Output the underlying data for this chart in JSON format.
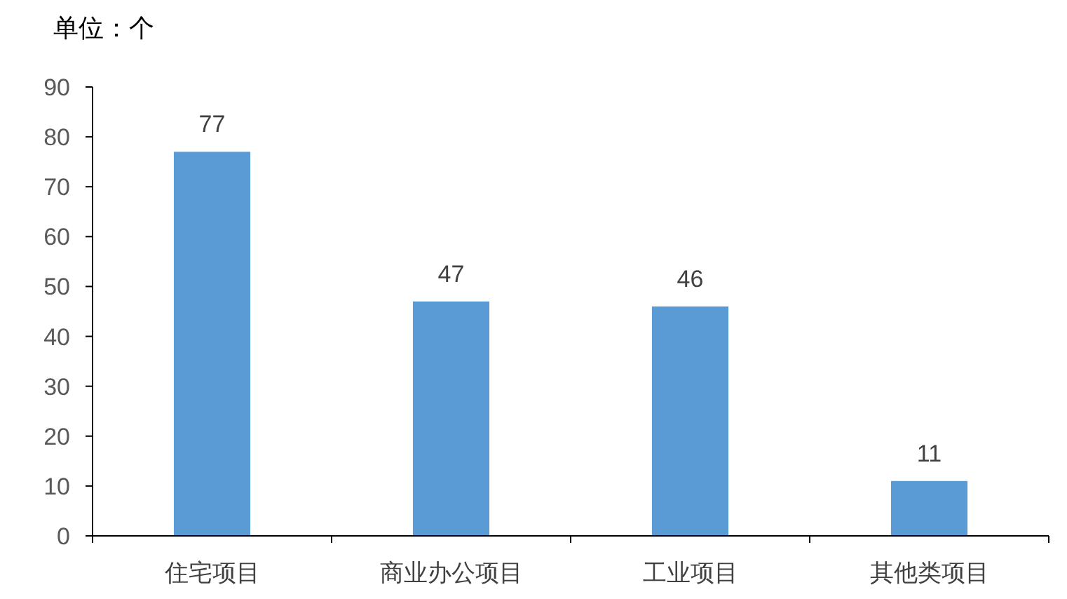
{
  "chart_data": {
    "type": "bar",
    "title": "单位：个",
    "categories": [
      "住宅项目",
      "商业办公项目",
      "工业项目",
      "其他类项目"
    ],
    "values": [
      77,
      47,
      46,
      11
    ],
    "color": "#5b9bd5",
    "ylim": [
      0,
      90
    ],
    "yticks": [
      0,
      10,
      20,
      30,
      40,
      50,
      60,
      70,
      80,
      90
    ],
    "data_labels": true
  }
}
